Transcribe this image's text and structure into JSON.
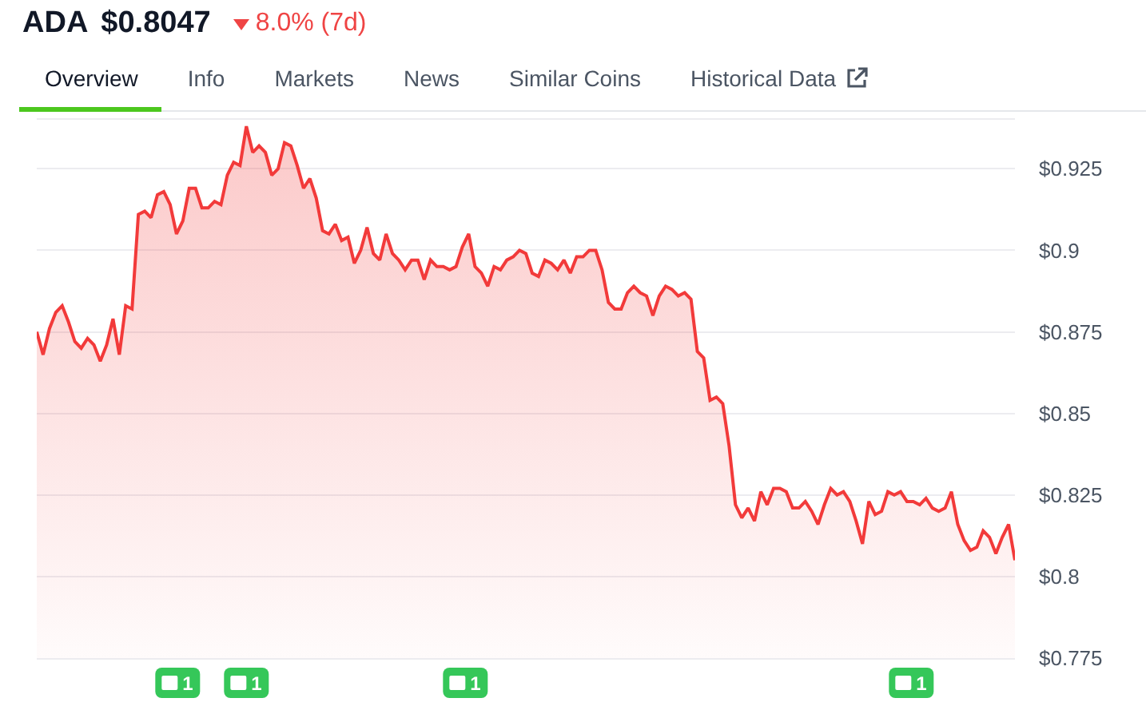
{
  "chart_data": {
    "type": "area",
    "title": "ADA",
    "subtitle": "$0.8047",
    "annotations": [
      "8.0% (7d)",
      "Overview",
      "Info",
      "Markets",
      "News",
      "Similar Coins",
      "Historical Data",
      "1",
      "1",
      "1",
      "1"
    ],
    "categories": [
      null,
      null,
      null,
      null,
      null,
      null,
      null,
      null,
      null,
      null,
      null,
      null,
      null,
      null,
      null,
      null,
      null,
      null,
      null,
      null,
      null,
      null,
      null,
      null,
      null,
      null,
      null,
      null,
      null,
      null,
      null,
      null,
      null,
      null,
      null,
      null,
      null,
      null,
      null,
      null,
      null,
      null,
      null,
      null,
      null,
      null,
      null,
      null,
      null,
      null,
      null,
      null,
      null,
      null,
      null,
      null,
      null,
      null,
      null,
      null,
      null,
      null,
      null,
      null,
      null,
      null,
      null,
      null,
      null,
      null,
      null,
      null,
      null,
      null,
      null,
      null,
      null,
      null,
      null,
      null,
      null,
      null,
      null,
      null,
      null,
      null,
      null,
      null,
      null,
      null,
      null,
      null,
      null,
      null,
      null,
      null,
      null,
      null,
      null,
      null,
      null,
      null,
      null,
      null,
      null,
      null,
      null,
      null,
      null,
      null,
      null,
      null,
      null,
      null,
      null,
      null,
      null,
      null,
      null,
      null,
      null,
      null,
      null,
      null,
      null,
      null,
      null,
      null,
      null,
      null,
      null,
      null,
      null,
      null,
      null,
      null,
      null,
      null,
      null,
      null,
      null,
      null,
      null,
      null,
      null,
      null,
      null,
      null,
      null,
      null,
      null,
      null,
      null,
      null,
      null
    ],
    "series": [
      {
        "color": "#f23a3a",
        "values": [
          0.875,
          0.868,
          0.876,
          0.881,
          0.883,
          0.878,
          0.872,
          0.87,
          0.873,
          0.871,
          0.866,
          0.871,
          0.879,
          0.868,
          0.883,
          0.882,
          0.911,
          0.912,
          0.91,
          0.917,
          0.918,
          0.914,
          0.905,
          0.909,
          0.919,
          0.919,
          0.913,
          0.913,
          0.915,
          0.914,
          0.923,
          0.927,
          0.926,
          0.938,
          0.93,
          0.932,
          0.93,
          0.923,
          0.925,
          0.933,
          0.932,
          0.926,
          0.919,
          0.922,
          0.916,
          0.906,
          0.905,
          0.908,
          0.903,
          0.904,
          0.896,
          0.9,
          0.907,
          0.899,
          0.897,
          0.905,
          0.899,
          0.897,
          0.894,
          0.897,
          0.897,
          0.891,
          0.897,
          0.895,
          0.895,
          0.894,
          0.895,
          0.901,
          0.905,
          0.895,
          0.893,
          0.889,
          0.895,
          0.894,
          0.897,
          0.898,
          0.9,
          0.899,
          0.893,
          0.892,
          0.897,
          0.896,
          0.894,
          0.897,
          0.893,
          0.898,
          0.898,
          0.9,
          0.9,
          0.894,
          0.884,
          0.882,
          0.882,
          0.887,
          0.889,
          0.887,
          0.886,
          0.88,
          0.886,
          0.889,
          0.888,
          0.886,
          0.887,
          0.885,
          0.869,
          0.867,
          0.854,
          0.855,
          0.853,
          0.84,
          0.822,
          0.818,
          0.821,
          0.817,
          0.826,
          0.822,
          0.827,
          0.827,
          0.826,
          0.821,
          0.821,
          0.823,
          0.82,
          0.816,
          0.822,
          0.827,
          0.825,
          0.826,
          0.823,
          0.817,
          0.81,
          0.823,
          0.819,
          0.82,
          0.826,
          0.825,
          0.826,
          0.823,
          0.823,
          0.822,
          0.824,
          0.821,
          0.82,
          0.821,
          0.826,
          0.816,
          0.811,
          0.808,
          0.809,
          0.814,
          0.812,
          0.807,
          0.812,
          0.816,
          0.805
        ]
      }
    ],
    "ylim": [
      0.775,
      0.94
    ],
    "yticks": [
      {
        "value": 0.775,
        "label": "$0.775"
      },
      {
        "value": 0.8,
        "label": "$0.8"
      },
      {
        "value": 0.825,
        "label": "$0.825"
      },
      {
        "value": 0.85,
        "label": "$0.85"
      },
      {
        "value": 0.875,
        "label": "$0.875"
      },
      {
        "value": 0.9,
        "label": "$0.9"
      },
      {
        "value": 0.925,
        "label": "$0.925"
      }
    ],
    "grid": "y",
    "marker": "none",
    "line_style": "solid",
    "tick_labels": "y"
  }
}
